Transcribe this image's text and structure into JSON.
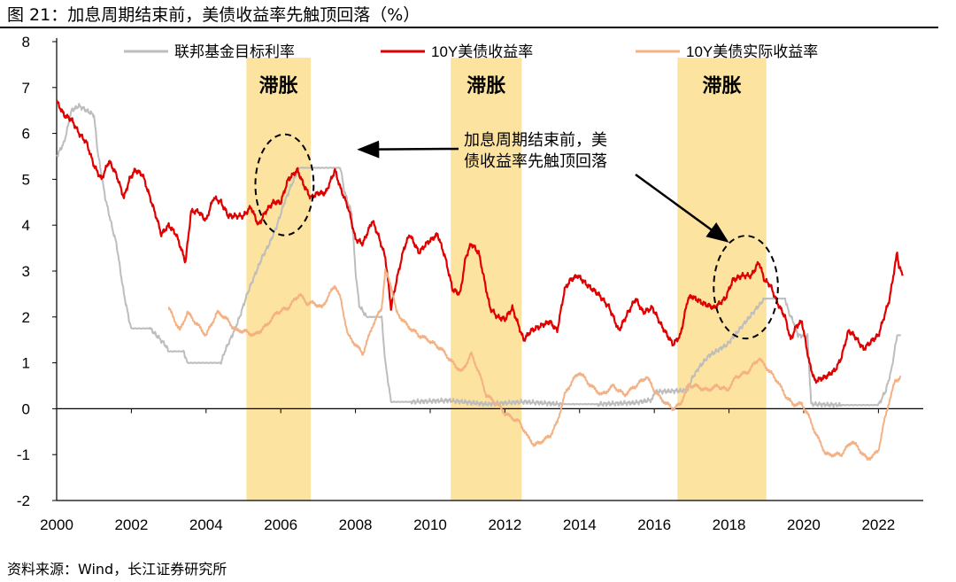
{
  "figure": {
    "title": "图 21：加息周期结束前，美债收益率先触顶回落（%）",
    "source": "资料来源：Wind，长江证券研究所"
  },
  "chart_data": {
    "type": "line",
    "title": "加息周期结束前，美债收益率先触顶回落（%）",
    "xlabel": "",
    "ylabel": "%",
    "xlim": [
      2000,
      2023.2
    ],
    "ylim": [
      -2,
      8
    ],
    "grid": false,
    "legend_position": "top",
    "x_ticks": [
      "2000",
      "2002",
      "2004",
      "2006",
      "2008",
      "2010",
      "2012",
      "2014",
      "2016",
      "2018",
      "2020",
      "2022"
    ],
    "y_ticks": [
      "-2",
      "-1",
      "0",
      "1",
      "2",
      "3",
      "4",
      "5",
      "6",
      "7",
      "8"
    ],
    "series": [
      {
        "name": "联邦基金目标利率",
        "color": "#bdbdbd",
        "points": [
          [
            2000.0,
            5.5
          ],
          [
            2000.2,
            5.8
          ],
          [
            2000.4,
            6.5
          ],
          [
            2000.6,
            6.6
          ],
          [
            2000.8,
            6.5
          ],
          [
            2001.0,
            6.4
          ],
          [
            2001.1,
            5.6
          ],
          [
            2001.3,
            4.6
          ],
          [
            2001.5,
            3.9
          ],
          [
            2001.6,
            3.6
          ],
          [
            2001.8,
            2.5
          ],
          [
            2001.95,
            1.9
          ],
          [
            2002.0,
            1.75
          ],
          [
            2002.5,
            1.75
          ],
          [
            2002.9,
            1.4
          ],
          [
            2003.0,
            1.25
          ],
          [
            2003.4,
            1.25
          ],
          [
            2003.5,
            1.0
          ],
          [
            2004.4,
            1.0
          ],
          [
            2004.5,
            1.25
          ],
          [
            2004.7,
            1.6
          ],
          [
            2004.9,
            2.0
          ],
          [
            2005.1,
            2.5
          ],
          [
            2005.3,
            2.9
          ],
          [
            2005.5,
            3.3
          ],
          [
            2005.7,
            3.6
          ],
          [
            2005.9,
            4.0
          ],
          [
            2006.1,
            4.5
          ],
          [
            2006.3,
            4.9
          ],
          [
            2006.5,
            5.25
          ],
          [
            2007.0,
            5.25
          ],
          [
            2007.6,
            5.25
          ],
          [
            2007.7,
            4.75
          ],
          [
            2007.9,
            4.25
          ],
          [
            2008.0,
            3.0
          ],
          [
            2008.1,
            2.25
          ],
          [
            2008.3,
            2.0
          ],
          [
            2008.7,
            2.0
          ],
          [
            2008.8,
            1.0
          ],
          [
            2008.95,
            0.15
          ],
          [
            2009.5,
            0.15
          ],
          [
            2010.5,
            0.18
          ],
          [
            2011.5,
            0.1
          ],
          [
            2012.5,
            0.15
          ],
          [
            2013.5,
            0.1
          ],
          [
            2014.5,
            0.1
          ],
          [
            2015.5,
            0.13
          ],
          [
            2015.95,
            0.2
          ],
          [
            2016.0,
            0.37
          ],
          [
            2016.9,
            0.4
          ],
          [
            2017.0,
            0.65
          ],
          [
            2017.2,
            0.9
          ],
          [
            2017.45,
            1.15
          ],
          [
            2017.95,
            1.4
          ],
          [
            2018.2,
            1.65
          ],
          [
            2018.45,
            1.9
          ],
          [
            2018.7,
            2.15
          ],
          [
            2018.95,
            2.4
          ],
          [
            2019.5,
            2.4
          ],
          [
            2019.6,
            2.1
          ],
          [
            2019.75,
            1.85
          ],
          [
            2019.85,
            1.6
          ],
          [
            2020.1,
            1.58
          ],
          [
            2020.2,
            0.1
          ],
          [
            2021.0,
            0.08
          ],
          [
            2022.0,
            0.08
          ],
          [
            2022.2,
            0.4
          ],
          [
            2022.35,
            0.85
          ],
          [
            2022.5,
            1.6
          ],
          [
            2022.6,
            1.6
          ]
        ]
      },
      {
        "name": "10Y美债收益率",
        "color": "#e00000",
        "points": [
          [
            2000.0,
            6.7
          ],
          [
            2000.2,
            6.4
          ],
          [
            2000.4,
            6.3
          ],
          [
            2000.6,
            6.0
          ],
          [
            2000.8,
            5.8
          ],
          [
            2001.0,
            5.3
          ],
          [
            2001.2,
            5.0
          ],
          [
            2001.4,
            5.4
          ],
          [
            2001.6,
            5.1
          ],
          [
            2001.8,
            4.6
          ],
          [
            2001.95,
            5.0
          ],
          [
            2002.1,
            5.2
          ],
          [
            2002.3,
            5.1
          ],
          [
            2002.5,
            4.6
          ],
          [
            2002.7,
            4.1
          ],
          [
            2002.8,
            3.8
          ],
          [
            2003.0,
            4.0
          ],
          [
            2003.2,
            3.8
          ],
          [
            2003.45,
            3.2
          ],
          [
            2003.6,
            4.3
          ],
          [
            2003.8,
            4.3
          ],
          [
            2004.0,
            4.1
          ],
          [
            2004.2,
            4.6
          ],
          [
            2004.4,
            4.5
          ],
          [
            2004.6,
            4.2
          ],
          [
            2004.8,
            4.2
          ],
          [
            2005.0,
            4.2
          ],
          [
            2005.2,
            4.4
          ],
          [
            2005.4,
            4.0
          ],
          [
            2005.6,
            4.3
          ],
          [
            2005.8,
            4.5
          ],
          [
            2006.0,
            4.5
          ],
          [
            2006.2,
            5.0
          ],
          [
            2006.45,
            5.2
          ],
          [
            2006.6,
            4.9
          ],
          [
            2006.8,
            4.6
          ],
          [
            2007.0,
            4.7
          ],
          [
            2007.2,
            4.7
          ],
          [
            2007.45,
            5.2
          ],
          [
            2007.6,
            4.8
          ],
          [
            2007.8,
            4.4
          ],
          [
            2008.0,
            3.7
          ],
          [
            2008.2,
            3.6
          ],
          [
            2008.45,
            4.1
          ],
          [
            2008.6,
            3.8
          ],
          [
            2008.8,
            3.3
          ],
          [
            2008.95,
            2.2
          ],
          [
            2009.1,
            2.8
          ],
          [
            2009.3,
            3.5
          ],
          [
            2009.45,
            3.8
          ],
          [
            2009.7,
            3.4
          ],
          [
            2009.9,
            3.6
          ],
          [
            2010.2,
            3.8
          ],
          [
            2010.4,
            3.3
          ],
          [
            2010.6,
            2.6
          ],
          [
            2010.8,
            2.5
          ],
          [
            2010.95,
            3.3
          ],
          [
            2011.1,
            3.6
          ],
          [
            2011.3,
            3.4
          ],
          [
            2011.6,
            2.2
          ],
          [
            2011.8,
            2.0
          ],
          [
            2012.0,
            1.95
          ],
          [
            2012.2,
            2.2
          ],
          [
            2012.5,
            1.5
          ],
          [
            2012.7,
            1.7
          ],
          [
            2012.95,
            1.8
          ],
          [
            2013.2,
            1.9
          ],
          [
            2013.4,
            1.7
          ],
          [
            2013.6,
            2.6
          ],
          [
            2013.75,
            2.8
          ],
          [
            2013.95,
            2.9
          ],
          [
            2014.2,
            2.7
          ],
          [
            2014.5,
            2.5
          ],
          [
            2014.8,
            2.2
          ],
          [
            2015.05,
            1.7
          ],
          [
            2015.3,
            2.1
          ],
          [
            2015.5,
            2.4
          ],
          [
            2015.7,
            2.1
          ],
          [
            2015.95,
            2.2
          ],
          [
            2016.2,
            1.8
          ],
          [
            2016.5,
            1.4
          ],
          [
            2016.7,
            1.6
          ],
          [
            2016.9,
            2.4
          ],
          [
            2017.0,
            2.45
          ],
          [
            2017.3,
            2.3
          ],
          [
            2017.6,
            2.2
          ],
          [
            2017.9,
            2.4
          ],
          [
            2018.1,
            2.8
          ],
          [
            2018.35,
            2.9
          ],
          [
            2018.6,
            2.9
          ],
          [
            2018.8,
            3.2
          ],
          [
            2018.95,
            2.8
          ],
          [
            2019.1,
            2.7
          ],
          [
            2019.3,
            2.3
          ],
          [
            2019.5,
            2.0
          ],
          [
            2019.65,
            1.5
          ],
          [
            2019.8,
            1.8
          ],
          [
            2019.95,
            1.9
          ],
          [
            2020.15,
            1.0
          ],
          [
            2020.3,
            0.6
          ],
          [
            2020.6,
            0.7
          ],
          [
            2020.85,
            0.85
          ],
          [
            2021.0,
            1.1
          ],
          [
            2021.2,
            1.7
          ],
          [
            2021.35,
            1.6
          ],
          [
            2021.6,
            1.3
          ],
          [
            2021.85,
            1.5
          ],
          [
            2022.0,
            1.6
          ],
          [
            2022.15,
            2.0
          ],
          [
            2022.3,
            2.4
          ],
          [
            2022.4,
            2.9
          ],
          [
            2022.5,
            3.4
          ],
          [
            2022.55,
            3.1
          ],
          [
            2022.65,
            2.9
          ]
        ]
      },
      {
        "name": "10Y美债实际收益率",
        "color": "#f4b183",
        "points": [
          [
            2003.0,
            2.2
          ],
          [
            2003.3,
            1.7
          ],
          [
            2003.5,
            2.1
          ],
          [
            2003.7,
            1.9
          ],
          [
            2004.0,
            1.6
          ],
          [
            2004.3,
            2.1
          ],
          [
            2004.5,
            2.0
          ],
          [
            2004.8,
            1.7
          ],
          [
            2005.0,
            1.7
          ],
          [
            2005.3,
            1.6
          ],
          [
            2005.6,
            1.8
          ],
          [
            2005.9,
            2.1
          ],
          [
            2006.2,
            2.2
          ],
          [
            2006.5,
            2.5
          ],
          [
            2006.7,
            2.3
          ],
          [
            2006.9,
            2.3
          ],
          [
            2007.1,
            2.2
          ],
          [
            2007.45,
            2.7
          ],
          [
            2007.6,
            2.4
          ],
          [
            2007.8,
            1.6
          ],
          [
            2008.0,
            1.4
          ],
          [
            2008.2,
            1.2
          ],
          [
            2008.45,
            1.8
          ],
          [
            2008.7,
            2.2
          ],
          [
            2008.8,
            3.0
          ],
          [
            2008.95,
            2.7
          ],
          [
            2009.1,
            2.1
          ],
          [
            2009.4,
            1.8
          ],
          [
            2009.7,
            1.6
          ],
          [
            2009.95,
            1.5
          ],
          [
            2010.3,
            1.3
          ],
          [
            2010.6,
            1.0
          ],
          [
            2010.85,
            0.8
          ],
          [
            2011.1,
            1.2
          ],
          [
            2011.3,
            0.8
          ],
          [
            2011.5,
            0.3
          ],
          [
            2011.8,
            0.1
          ],
          [
            2012.0,
            -0.1
          ],
          [
            2012.2,
            -0.2
          ],
          [
            2012.4,
            -0.3
          ],
          [
            2012.6,
            -0.6
          ],
          [
            2012.8,
            -0.8
          ],
          [
            2013.0,
            -0.7
          ],
          [
            2013.2,
            -0.6
          ],
          [
            2013.4,
            -0.3
          ],
          [
            2013.6,
            0.3
          ],
          [
            2013.8,
            0.6
          ],
          [
            2014.0,
            0.8
          ],
          [
            2014.3,
            0.5
          ],
          [
            2014.6,
            0.3
          ],
          [
            2014.9,
            0.5
          ],
          [
            2015.2,
            0.3
          ],
          [
            2015.5,
            0.5
          ],
          [
            2015.8,
            0.7
          ],
          [
            2016.0,
            0.4
          ],
          [
            2016.2,
            0.2
          ],
          [
            2016.5,
            0.0
          ],
          [
            2016.7,
            0.1
          ],
          [
            2016.9,
            0.5
          ],
          [
            2017.1,
            0.5
          ],
          [
            2017.4,
            0.4
          ],
          [
            2017.7,
            0.5
          ],
          [
            2017.95,
            0.4
          ],
          [
            2018.2,
            0.7
          ],
          [
            2018.5,
            0.8
          ],
          [
            2018.8,
            1.1
          ],
          [
            2019.0,
            0.9
          ],
          [
            2019.3,
            0.6
          ],
          [
            2019.5,
            0.3
          ],
          [
            2019.7,
            0.1
          ],
          [
            2019.95,
            0.1
          ],
          [
            2020.1,
            -0.1
          ],
          [
            2020.3,
            -0.5
          ],
          [
            2020.6,
            -1.0
          ],
          [
            2020.8,
            -1.0
          ],
          [
            2021.0,
            -1.0
          ],
          [
            2021.3,
            -0.7
          ],
          [
            2021.5,
            -0.9
          ],
          [
            2021.7,
            -1.1
          ],
          [
            2021.9,
            -1.0
          ],
          [
            2022.0,
            -0.9
          ],
          [
            2022.15,
            -0.3
          ],
          [
            2022.3,
            0.2
          ],
          [
            2022.45,
            0.6
          ],
          [
            2022.6,
            0.7
          ]
        ]
      }
    ],
    "shaded_regions": [
      {
        "label": "滞胀",
        "from": 2005.08,
        "to": 2006.8
      },
      {
        "label": "滞胀",
        "from": 2010.55,
        "to": 2012.45
      },
      {
        "label": "滞胀",
        "from": 2016.62,
        "to": 2019.0
      }
    ],
    "annotation": {
      "line1": "加息周期结束前，美",
      "line2": "债收益率先触顶回落",
      "arrow_tip_year": 2008.1,
      "arrow_tip_value": 5.65,
      "arrow2_tip_year": 2017.95,
      "arrow2_tip_value": 3.65,
      "ellipses": [
        {
          "center_year": 2006.1,
          "center_value": 4.88,
          "year_radius": 0.78,
          "value_radius": 1.1
        },
        {
          "center_year": 2018.45,
          "center_value": 2.65,
          "year_radius": 0.86,
          "value_radius": 1.12
        }
      ]
    }
  }
}
